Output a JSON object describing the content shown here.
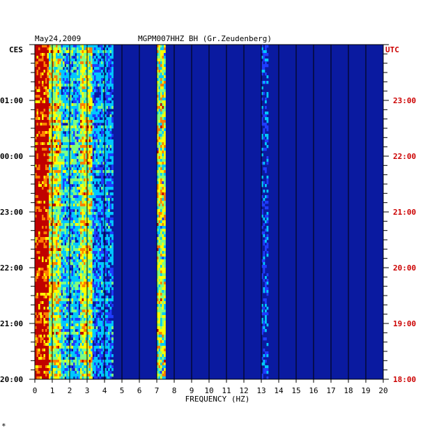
{
  "header": {
    "date": "May24,2009",
    "station": "MGPM007HHZ BH (Gr.Zeudenberg)"
  },
  "left_axis_unit": "CES",
  "right_axis_unit": "UTC",
  "colors": {
    "background": "#ffffff",
    "plot_bg": "#0a1aa0",
    "grid": "#000000",
    "left_labels": "#000000",
    "right_labels": "#cc0000",
    "axis_text": "#000000"
  },
  "footer_mark": "*",
  "chart_data": {
    "type": "heatmap",
    "title": "",
    "xlabel": "FREQUENCY (HZ)",
    "ylabel": "",
    "xlim": [
      0,
      20
    ],
    "x_ticks": [
      "0",
      "1",
      "2",
      "3",
      "4",
      "5",
      "6",
      "7",
      "8",
      "9",
      "10",
      "11",
      "12",
      "13",
      "14",
      "15",
      "16",
      "17",
      "18",
      "19",
      "20"
    ],
    "y_ticks_left": [
      "01:00",
      "00:00",
      "23:00",
      "22:00",
      "21:00",
      "20:00"
    ],
    "y_ticks_right": [
      "23:00",
      "22:00",
      "21:00",
      "20:00",
      "19:00",
      "18:00"
    ],
    "y_tick_hours_from_bottom": [
      5,
      4,
      3,
      2,
      1,
      0
    ],
    "hours_span": 6,
    "colorscale": [
      "#0a1aa0",
      "#1f3cff",
      "#00c8ff",
      "#80ff80",
      "#ffff00",
      "#ff8000",
      "#c00000"
    ],
    "energy_bands": [
      {
        "center_hz": 0.4,
        "intensity": "very high"
      },
      {
        "center_hz": 1.0,
        "intensity": "moderate"
      },
      {
        "center_hz": 3.0,
        "intensity": "high"
      },
      {
        "center_hz": 7.2,
        "intensity": "high"
      },
      {
        "center_hz": 13.2,
        "intensity": "low"
      }
    ]
  }
}
